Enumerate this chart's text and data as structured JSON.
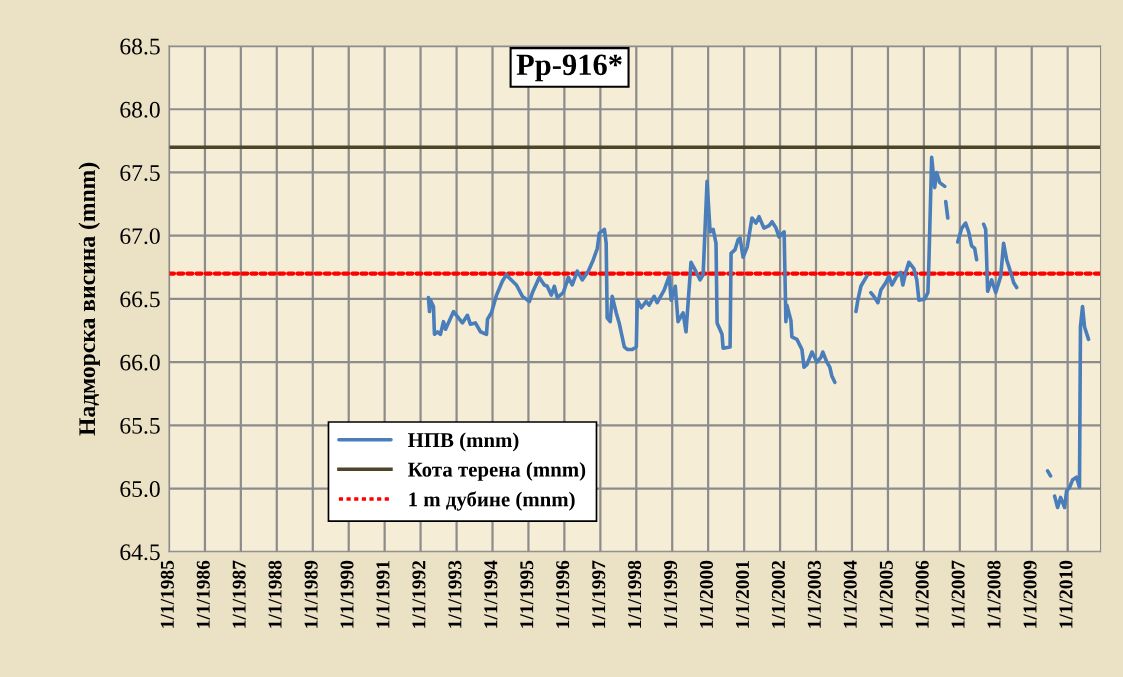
{
  "chart_data": {
    "type": "line",
    "title": "Pp-916*",
    "ylabel": "Надморска висина (mnm)",
    "xlim": [
      "1985-01-01",
      "2010-12-01"
    ],
    "xticks": [
      {
        "value": "1985-01-01",
        "label": "1/1/1985"
      },
      {
        "value": "1986-01-01",
        "label": "1/1/1986"
      },
      {
        "value": "1987-01-01",
        "label": "1/1/1987"
      },
      {
        "value": "1988-01-01",
        "label": "1/1/1988"
      },
      {
        "value": "1989-01-01",
        "label": "1/1/1989"
      },
      {
        "value": "1990-01-01",
        "label": "1/1/1990"
      },
      {
        "value": "1991-01-01",
        "label": "1/1/1991"
      },
      {
        "value": "1992-01-01",
        "label": "1/1/1992"
      },
      {
        "value": "1993-01-01",
        "label": "1/1/1993"
      },
      {
        "value": "1994-01-01",
        "label": "1/1/1994"
      },
      {
        "value": "1995-01-01",
        "label": "1/1/1995"
      },
      {
        "value": "1996-01-01",
        "label": "1/1/1996"
      },
      {
        "value": "1997-01-01",
        "label": "1/1/1997"
      },
      {
        "value": "1998-01-01",
        "label": "1/1/1998"
      },
      {
        "value": "1999-01-01",
        "label": "1/1/1999"
      },
      {
        "value": "2000-01-01",
        "label": "1/1/2000"
      },
      {
        "value": "2001-01-01",
        "label": "1/1/2001"
      },
      {
        "value": "2002-01-01",
        "label": "1/1/2002"
      },
      {
        "value": "2003-01-01",
        "label": "1/1/2003"
      },
      {
        "value": "2004-01-01",
        "label": "1/1/2004"
      },
      {
        "value": "2005-01-01",
        "label": "1/1/2005"
      },
      {
        "value": "2006-01-01",
        "label": "1/1/2006"
      },
      {
        "value": "2007-01-01",
        "label": "1/1/2007"
      },
      {
        "value": "2008-01-01",
        "label": "1/1/2008"
      },
      {
        "value": "2009-01-01",
        "label": "1/1/2009"
      },
      {
        "value": "2010-01-01",
        "label": "1/1/2010"
      }
    ],
    "ylim": [
      64.5,
      68.5
    ],
    "yticks": [
      {
        "value": 64.5,
        "label": "64.5"
      },
      {
        "value": 65,
        "label": "65.0"
      },
      {
        "value": 65.5,
        "label": "65.5"
      },
      {
        "value": 66,
        "label": "66.0"
      },
      {
        "value": 66.5,
        "label": "66.5"
      },
      {
        "value": 67,
        "label": "67.0"
      },
      {
        "value": 67.5,
        "label": "67.5"
      },
      {
        "value": 68,
        "label": "68.0"
      },
      {
        "value": 68.5,
        "label": "68.5"
      }
    ],
    "grid": true,
    "legend": "bottom left",
    "marker": "none",
    "line_style": "solid",
    "series": [
      {
        "name": "НПВ (mnm)",
        "color": "#4a7ebb",
        "x": [
          "1992-03-21",
          "1992-04-01",
          "1992-04-11",
          "1992-05-11",
          "1992-05-21",
          "1992-06-21",
          "1992-07-21",
          "1992-08-21",
          "1992-09-11",
          "1992-12-01",
          "1993-03-01",
          "1993-04-21",
          "1993-05-21",
          "1993-07-11",
          "1993-09-01",
          "1993-11-01",
          "1993-11-11",
          "1993-12-21",
          "1994-02-11",
          "1994-04-11",
          "1994-05-21",
          "1994-07-11",
          "1994-09-01",
          "1994-11-01",
          "1995-01-11",
          "1995-02-11",
          "1995-04-21",
          "1995-06-11",
          "1995-07-11",
          "1995-08-21",
          "1995-09-21",
          "1995-10-21",
          "1995-12-21",
          "1996-02-11",
          "1996-03-21",
          "1996-05-11",
          "1996-07-01",
          "1996-09-01",
          "1996-10-21",
          "1996-12-01",
          "1996-12-21",
          "1997-02-11",
          "1997-03-01",
          "1997-03-11",
          "1997-04-11",
          "1997-05-01",
          "1997-06-11",
          "1997-07-11",
          "1997-09-01",
          "1997-10-01",
          "1997-11-21",
          "1998-01-01",
          "1998-01-11",
          "1998-02-21",
          "1998-04-11",
          "1998-05-11",
          "1998-07-01",
          "1998-08-01",
          "1998-10-11",
          "1998-12-01",
          "1998-12-21",
          "1999-02-01",
          "1999-03-01",
          "1999-04-21",
          "1999-05-21",
          "1999-07-11",
          "1999-08-21",
          "1999-10-11",
          "1999-11-11",
          "1999-12-21",
          "2000-01-21",
          "2000-02-21",
          "2000-03-21",
          "2000-04-01",
          "2000-05-21",
          "2000-06-01",
          "2000-08-11",
          "2000-08-21",
          "2000-10-01",
          "2000-11-01",
          "2000-11-21",
          "2000-12-21",
          "2001-02-01",
          "2001-03-21",
          "2001-05-01",
          "2001-06-01",
          "2001-07-21",
          "2001-09-11",
          "2001-10-11",
          "2001-11-21",
          "2001-12-21",
          "2002-02-11",
          "2002-03-01",
          "2002-03-11",
          "2002-04-21",
          "2002-05-01",
          "2002-06-21",
          "2002-08-11",
          "2002-09-01",
          "2002-10-01",
          "2002-11-21",
          "2003-01-11",
          "2003-02-21",
          "2003-03-11",
          "2003-04-21",
          "2003-05-21",
          "2003-06-11",
          "2003-07-11",
          "2003-10-01",
          "2004-02-11",
          "2004-03-01",
          "2004-04-01",
          "2004-05-01",
          "2004-06-01",
          "2004-06-21",
          "2004-07-11",
          "2004-08-11",
          "2004-09-21",
          "2004-10-21",
          "2004-12-11",
          "2005-01-11",
          "2005-02-11",
          "2005-04-01",
          "2005-05-11",
          "2005-06-01",
          "2005-07-01",
          "2005-08-01",
          "2005-09-21",
          "2005-10-21",
          "2005-11-11",
          "2006-01-11",
          "2006-02-11",
          "2006-02-21",
          "2006-03-21",
          "2006-04-21",
          "2006-05-11",
          "2006-06-11",
          "2006-08-01",
          "2006-08-06",
          "2006-08-11",
          "2006-09-01",
          "2006-10-15",
          "2006-12-11",
          "2007-01-21",
          "2007-03-01",
          "2007-04-01",
          "2007-05-01",
          "2007-06-01",
          "2007-06-21",
          "2007-08-01",
          "2007-09-01",
          "2007-09-21",
          "2007-10-11",
          "2007-11-21",
          "2008-01-01",
          "2008-02-21",
          "2008-03-21",
          "2008-04-21",
          "2008-06-01",
          "2008-07-01",
          "2008-08-01",
          "2009-01-01",
          "2009-06-11",
          "2009-07-11",
          "2009-08-01",
          "2009-08-21",
          "2009-09-21",
          "2009-10-21",
          "2009-12-01",
          "2009-12-21",
          "2010-01-21",
          "2010-02-21",
          "2010-04-01",
          "2010-05-01",
          "2010-05-11",
          "2010-06-01",
          "2010-06-21",
          "2010-08-01"
        ],
        "values": [
          66.51,
          66.4,
          66.49,
          66.44,
          66.22,
          66.24,
          66.22,
          66.32,
          66.26,
          66.4,
          66.31,
          66.37,
          66.3,
          66.31,
          66.24,
          66.22,
          66.34,
          66.39,
          66.53,
          66.64,
          66.69,
          66.65,
          66.61,
          66.52,
          66.48,
          66.55,
          66.67,
          66.61,
          66.6,
          66.53,
          66.6,
          66.51,
          66.55,
          66.67,
          66.61,
          66.72,
          66.65,
          66.72,
          66.81,
          66.9,
          67.02,
          67.05,
          66.94,
          66.35,
          66.32,
          66.52,
          66.39,
          66.31,
          66.12,
          66.1,
          66.1,
          66.12,
          66.49,
          66.43,
          66.48,
          66.45,
          66.52,
          66.47,
          66.57,
          66.68,
          66.49,
          66.6,
          66.32,
          66.39,
          66.24,
          66.79,
          66.73,
          66.65,
          66.69,
          67.43,
          67.03,
          67.05,
          66.94,
          66.31,
          66.22,
          66.11,
          66.12,
          66.86,
          66.89,
          66.97,
          66.98,
          66.83,
          66.91,
          67.14,
          67.1,
          67.15,
          67.06,
          67.08,
          67.11,
          67.06,
          66.99,
          67.03,
          66.32,
          66.45,
          66.33,
          66.2,
          66.18,
          66.1,
          65.96,
          65.98,
          66.08,
          66.0,
          66.04,
          66.08,
          66.0,
          65.96,
          65.89,
          65.84,
          null,
          66.4,
          66.49,
          66.6,
          66.64,
          66.68,
          null,
          66.55,
          66.52,
          66.47,
          66.57,
          66.63,
          66.68,
          66.61,
          66.68,
          66.71,
          66.61,
          66.71,
          66.79,
          66.74,
          66.65,
          66.49,
          66.5,
          66.55,
          66.79,
          67.62,
          67.38,
          67.5,
          67.42,
          67.39,
          null,
          67.27,
          67.14,
          null,
          66.95,
          67.06,
          67.1,
          67.03,
          66.92,
          66.9,
          66.81,
          null,
          67.09,
          67.05,
          66.56,
          66.65,
          66.55,
          66.68,
          66.94,
          66.81,
          66.71,
          66.63,
          66.59,
          null,
          65.14,
          65.1,
          null,
          64.94,
          64.85,
          64.93,
          64.85,
          64.98,
          65.01,
          65.07,
          65.09,
          65.01,
          66.28,
          66.44,
          66.28,
          66.18
        ]
      }
    ],
    "ref_lines": [
      {
        "axis": "y",
        "value": 67.7,
        "label": "Кота терена (mnm)",
        "color": "#4d4529",
        "line_style": "solid"
      },
      {
        "axis": "y",
        "value": 66.7,
        "label": "1 m дубине (mnm)",
        "color": "#ff0000",
        "line_style": "dotted"
      }
    ]
  }
}
